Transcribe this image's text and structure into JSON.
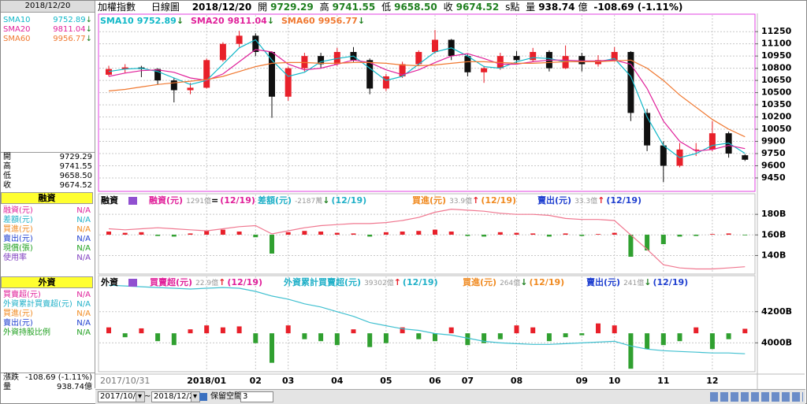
{
  "header": {
    "title": "加權指數",
    "period": "日線圖",
    "date": "2018/12/20",
    "open_label": "開",
    "open": "9729.29",
    "high_label": "高",
    "high": "9741.55",
    "low_label": "低",
    "low": "9658.50",
    "close_label": "收",
    "close": "9674.52",
    "unit": "s點",
    "volume_label": "量",
    "volume": "938.74",
    "volume_unit": "億",
    "change": "-108.69 (-1.11%)"
  },
  "sidebar": {
    "margin_rows": [
      {
        "label": "融資(元)",
        "value": "N/A",
        "color": "#e0209a"
      },
      {
        "label": "差額(元)",
        "value": "N/A",
        "color": "#20b0c8"
      },
      {
        "label": "買進(元)",
        "value": "N/A",
        "color": "#f08a20"
      },
      {
        "label": "賣出(元)",
        "value": "N/A",
        "color": "#2040d0"
      },
      {
        "label": "現償(張)",
        "value": "N/A",
        "color": "#20a020"
      },
      {
        "label": "使用率",
        "value": "N/A",
        "color": "#8040c0"
      }
    ],
    "foreign_rows": [
      {
        "label": "買賣超(元)",
        "value": "N/A",
        "color": "#e0209a"
      },
      {
        "label": "外資累計買賣超(元)",
        "value": "N/A",
        "color": "#20b0c8"
      },
      {
        "label": "買進(元)",
        "value": "N/A",
        "color": "#f08a20"
      },
      {
        "label": "賣出(元)",
        "value": "N/A",
        "color": "#2040d0"
      },
      {
        "label": "外資持股比例",
        "value": "N/A",
        "color": "#20a020"
      }
    ],
    "change_label": "漲跌"
  },
  "toolbar": {
    "start": "2017/10/31",
    "separator": "~",
    "end": "2018/12/20",
    "reserve_label": "保留空間",
    "reserve": "3"
  },
  "chart_data": [
    {
      "type": "candlestick",
      "categories": [
        "2017/10/31",
        null,
        null,
        null,
        null,
        null,
        "2018/01",
        null,
        null,
        "02",
        null,
        "03",
        null,
        null,
        "04",
        null,
        null,
        "05",
        null,
        null,
        "06",
        null,
        "07",
        null,
        null,
        "08",
        null,
        null,
        null,
        "09",
        null,
        "10",
        null,
        null,
        "11",
        null,
        null,
        "12",
        null,
        null
      ],
      "open": [
        10720,
        10790,
        10810,
        10790,
        10650,
        10530,
        10560,
        10900,
        11100,
        11200,
        11000,
        10450,
        10800,
        10950,
        10850,
        11000,
        10900,
        10550,
        10700,
        10850,
        11000,
        11150,
        10950,
        10750,
        10800,
        10950,
        10900,
        11000,
        10800,
        10950,
        10850,
        10900,
        11000,
        10250,
        9850,
        9600,
        9800,
        9800,
        10000,
        9729.29
      ],
      "high": [
        10830,
        10850,
        10830,
        10800,
        10680,
        10620,
        10920,
        11120,
        11260,
        11230,
        11010,
        10820,
        10990,
        10990,
        11050,
        11060,
        10920,
        10730,
        10880,
        11020,
        11270,
        11160,
        10970,
        10830,
        10990,
        11010,
        11050,
        11020,
        11080,
        10990,
        10960,
        11060,
        11010,
        10300,
        9900,
        9880,
        9880,
        10150,
        10020,
        9741.55
      ],
      "low": [
        10700,
        10740,
        10690,
        10600,
        10380,
        10480,
        10550,
        10880,
        11060,
        10950,
        10190,
        10400,
        10760,
        10800,
        10830,
        10880,
        10480,
        10520,
        10680,
        10830,
        10980,
        10900,
        10700,
        10620,
        10780,
        10850,
        10880,
        10760,
        10790,
        10760,
        10820,
        10880,
        10150,
        9780,
        9400,
        9580,
        9720,
        9780,
        9700,
        9658.5
      ],
      "close": [
        10790,
        10810,
        10790,
        10650,
        10530,
        10560,
        10900,
        11100,
        11200,
        11000,
        10450,
        10800,
        10950,
        10850,
        11000,
        10900,
        10550,
        10700,
        10850,
        11000,
        11150,
        10950,
        10750,
        10800,
        10950,
        10900,
        11000,
        10800,
        10950,
        10850,
        10900,
        11000,
        10250,
        9850,
        9600,
        9800,
        9800,
        10000,
        9750,
        9674.52
      ],
      "up_color": "#e8202a",
      "down_color": "#101010",
      "series": [
        {
          "name": "SMA10",
          "color": "#10b8c8",
          "trend": "↓",
          "values": [
            10760,
            10790,
            10800,
            10760,
            10680,
            10600,
            10650,
            10850,
            11050,
            11150,
            10900,
            10700,
            10750,
            10880,
            10920,
            10950,
            10800,
            10650,
            10700,
            10850,
            11000,
            11050,
            10950,
            10820,
            10800,
            10880,
            10930,
            10920,
            10880,
            10880,
            10880,
            10920,
            10700,
            10200,
            9850,
            9700,
            9750,
            9850,
            9880,
            9752.89
          ]
        },
        {
          "name": "SMA20",
          "color": "#e0209a",
          "trend": "↓",
          "values": [
            10700,
            10740,
            10770,
            10780,
            10750,
            10680,
            10650,
            10730,
            10880,
            11030,
            11000,
            10850,
            10780,
            10800,
            10850,
            10900,
            10870,
            10780,
            10720,
            10780,
            10870,
            10950,
            10980,
            10920,
            10850,
            10850,
            10880,
            10900,
            10900,
            10890,
            10890,
            10900,
            10850,
            10550,
            10150,
            9900,
            9780,
            9800,
            9850,
            9811.04
          ]
        },
        {
          "name": "SMA60",
          "color": "#f07830",
          "trend": "↓",
          "values": [
            10520,
            10540,
            10570,
            10600,
            10620,
            10640,
            10660,
            10700,
            10760,
            10820,
            10860,
            10870,
            10870,
            10860,
            10860,
            10870,
            10870,
            10860,
            10840,
            10830,
            10840,
            10860,
            10880,
            10880,
            10870,
            10860,
            10860,
            10870,
            10880,
            10880,
            10880,
            10890,
            10900,
            10800,
            10650,
            10470,
            10320,
            10170,
            10050,
            9956.77
          ]
        }
      ],
      "ylim": [
        9285,
        11465
      ],
      "yticks": [
        9450,
        9600,
        9750,
        9900,
        10050,
        10200,
        10350,
        10500,
        10650,
        10800,
        10950,
        11100,
        11250
      ],
      "grid": true
    },
    {
      "type": "combo",
      "label": "融資",
      "legend": [
        {
          "name": "融資(元)",
          "value": "1291億",
          "trend": "=",
          "date": "(12/19)",
          "color": "#e0209a"
        },
        {
          "name": "差額(元)",
          "value": "-2187萬",
          "trend": "↓",
          "date": "(12/19)",
          "color": "#20b0c8"
        },
        {
          "name": "買進(元)",
          "value": "33.9億",
          "trend": "↑",
          "date": "(12/19)",
          "color": "#f08a20"
        },
        {
          "name": "賣出(元)",
          "value": "33.3億",
          "trend": "↑",
          "date": "(12/19)",
          "color": "#2040d0"
        }
      ],
      "series": [
        {
          "kind": "bar",
          "up_color": "#e8202a",
          "down_color": "#30a030",
          "values": [
            5,
            3,
            4,
            -2,
            -3,
            2,
            6,
            8,
            5,
            -4,
            -30,
            4,
            6,
            5,
            3,
            2,
            -3,
            4,
            5,
            6,
            8,
            5,
            -2,
            -3,
            4,
            3,
            2,
            -3,
            2,
            -2,
            1,
            3,
            -35,
            -25,
            -15,
            -3,
            -2,
            1,
            2,
            -1
          ]
        },
        {
          "kind": "line",
          "color": "#f07890",
          "values": [
            166,
            165,
            166,
            167,
            166,
            165,
            164,
            166,
            168,
            169,
            161,
            164,
            167,
            169,
            170,
            171,
            171,
            172,
            174,
            177,
            182,
            185,
            184,
            183,
            181,
            180,
            180,
            179,
            176,
            175,
            175,
            174,
            160,
            146,
            131,
            128,
            127,
            127,
            128,
            129.1
          ]
        }
      ],
      "ylim": [
        122,
        200
      ],
      "yticks": [
        {
          "value": 140,
          "label": "140B"
        },
        {
          "value": 160,
          "label": "160B"
        },
        {
          "value": 180,
          "label": "180B"
        }
      ],
      "grid": true
    },
    {
      "type": "combo",
      "label": "外資",
      "legend": [
        {
          "name": "買賣超(元)",
          "value": "22.9億",
          "trend": "↑",
          "date": "(12/19)",
          "color": "#e0209a"
        },
        {
          "name": "外資累計買賣超(元)",
          "value": "39302億",
          "trend": "↑",
          "date": "(12/19)",
          "color": "#20b0c8"
        },
        {
          "name": "買進(元)",
          "value": "264億",
          "trend": "↓",
          "date": "(12/19)",
          "color": "#f08a20"
        },
        {
          "name": "賣出(元)",
          "value": "241億",
          "trend": "↓",
          "date": "(12/19)",
          "color": "#2040d0"
        }
      ],
      "series": [
        {
          "kind": "bar",
          "up_color": "#e8202a",
          "down_color": "#30a030",
          "values": [
            30,
            -20,
            25,
            -40,
            -60,
            20,
            40,
            30,
            35,
            -50,
            -150,
            40,
            -30,
            -40,
            -60,
            20,
            -70,
            -50,
            30,
            -30,
            -40,
            30,
            -60,
            -50,
            -30,
            40,
            30,
            -40,
            -20,
            -10,
            50,
            40,
            -180,
            -80,
            -60,
            -40,
            30,
            -80,
            -30,
            22.9
          ]
        },
        {
          "kind": "line",
          "color": "#40c0d0",
          "values": [
            4370,
            4365,
            4360,
            4355,
            4350,
            4345,
            4350,
            4355,
            4350,
            4330,
            4300,
            4280,
            4250,
            4230,
            4200,
            4170,
            4130,
            4110,
            4090,
            4080,
            4060,
            4050,
            4030,
            4010,
            4000,
            3995,
            3990,
            3990,
            3995,
            4000,
            4005,
            4010,
            3980,
            3960,
            3950,
            3945,
            3940,
            3935,
            3935,
            3930.2
          ]
        }
      ],
      "ylim": [
        3815,
        4431
      ],
      "yticks": [
        {
          "value": 4000,
          "label": "4000B"
        },
        {
          "value": 4200,
          "label": "4200B"
        }
      ],
      "grid": true
    }
  ]
}
